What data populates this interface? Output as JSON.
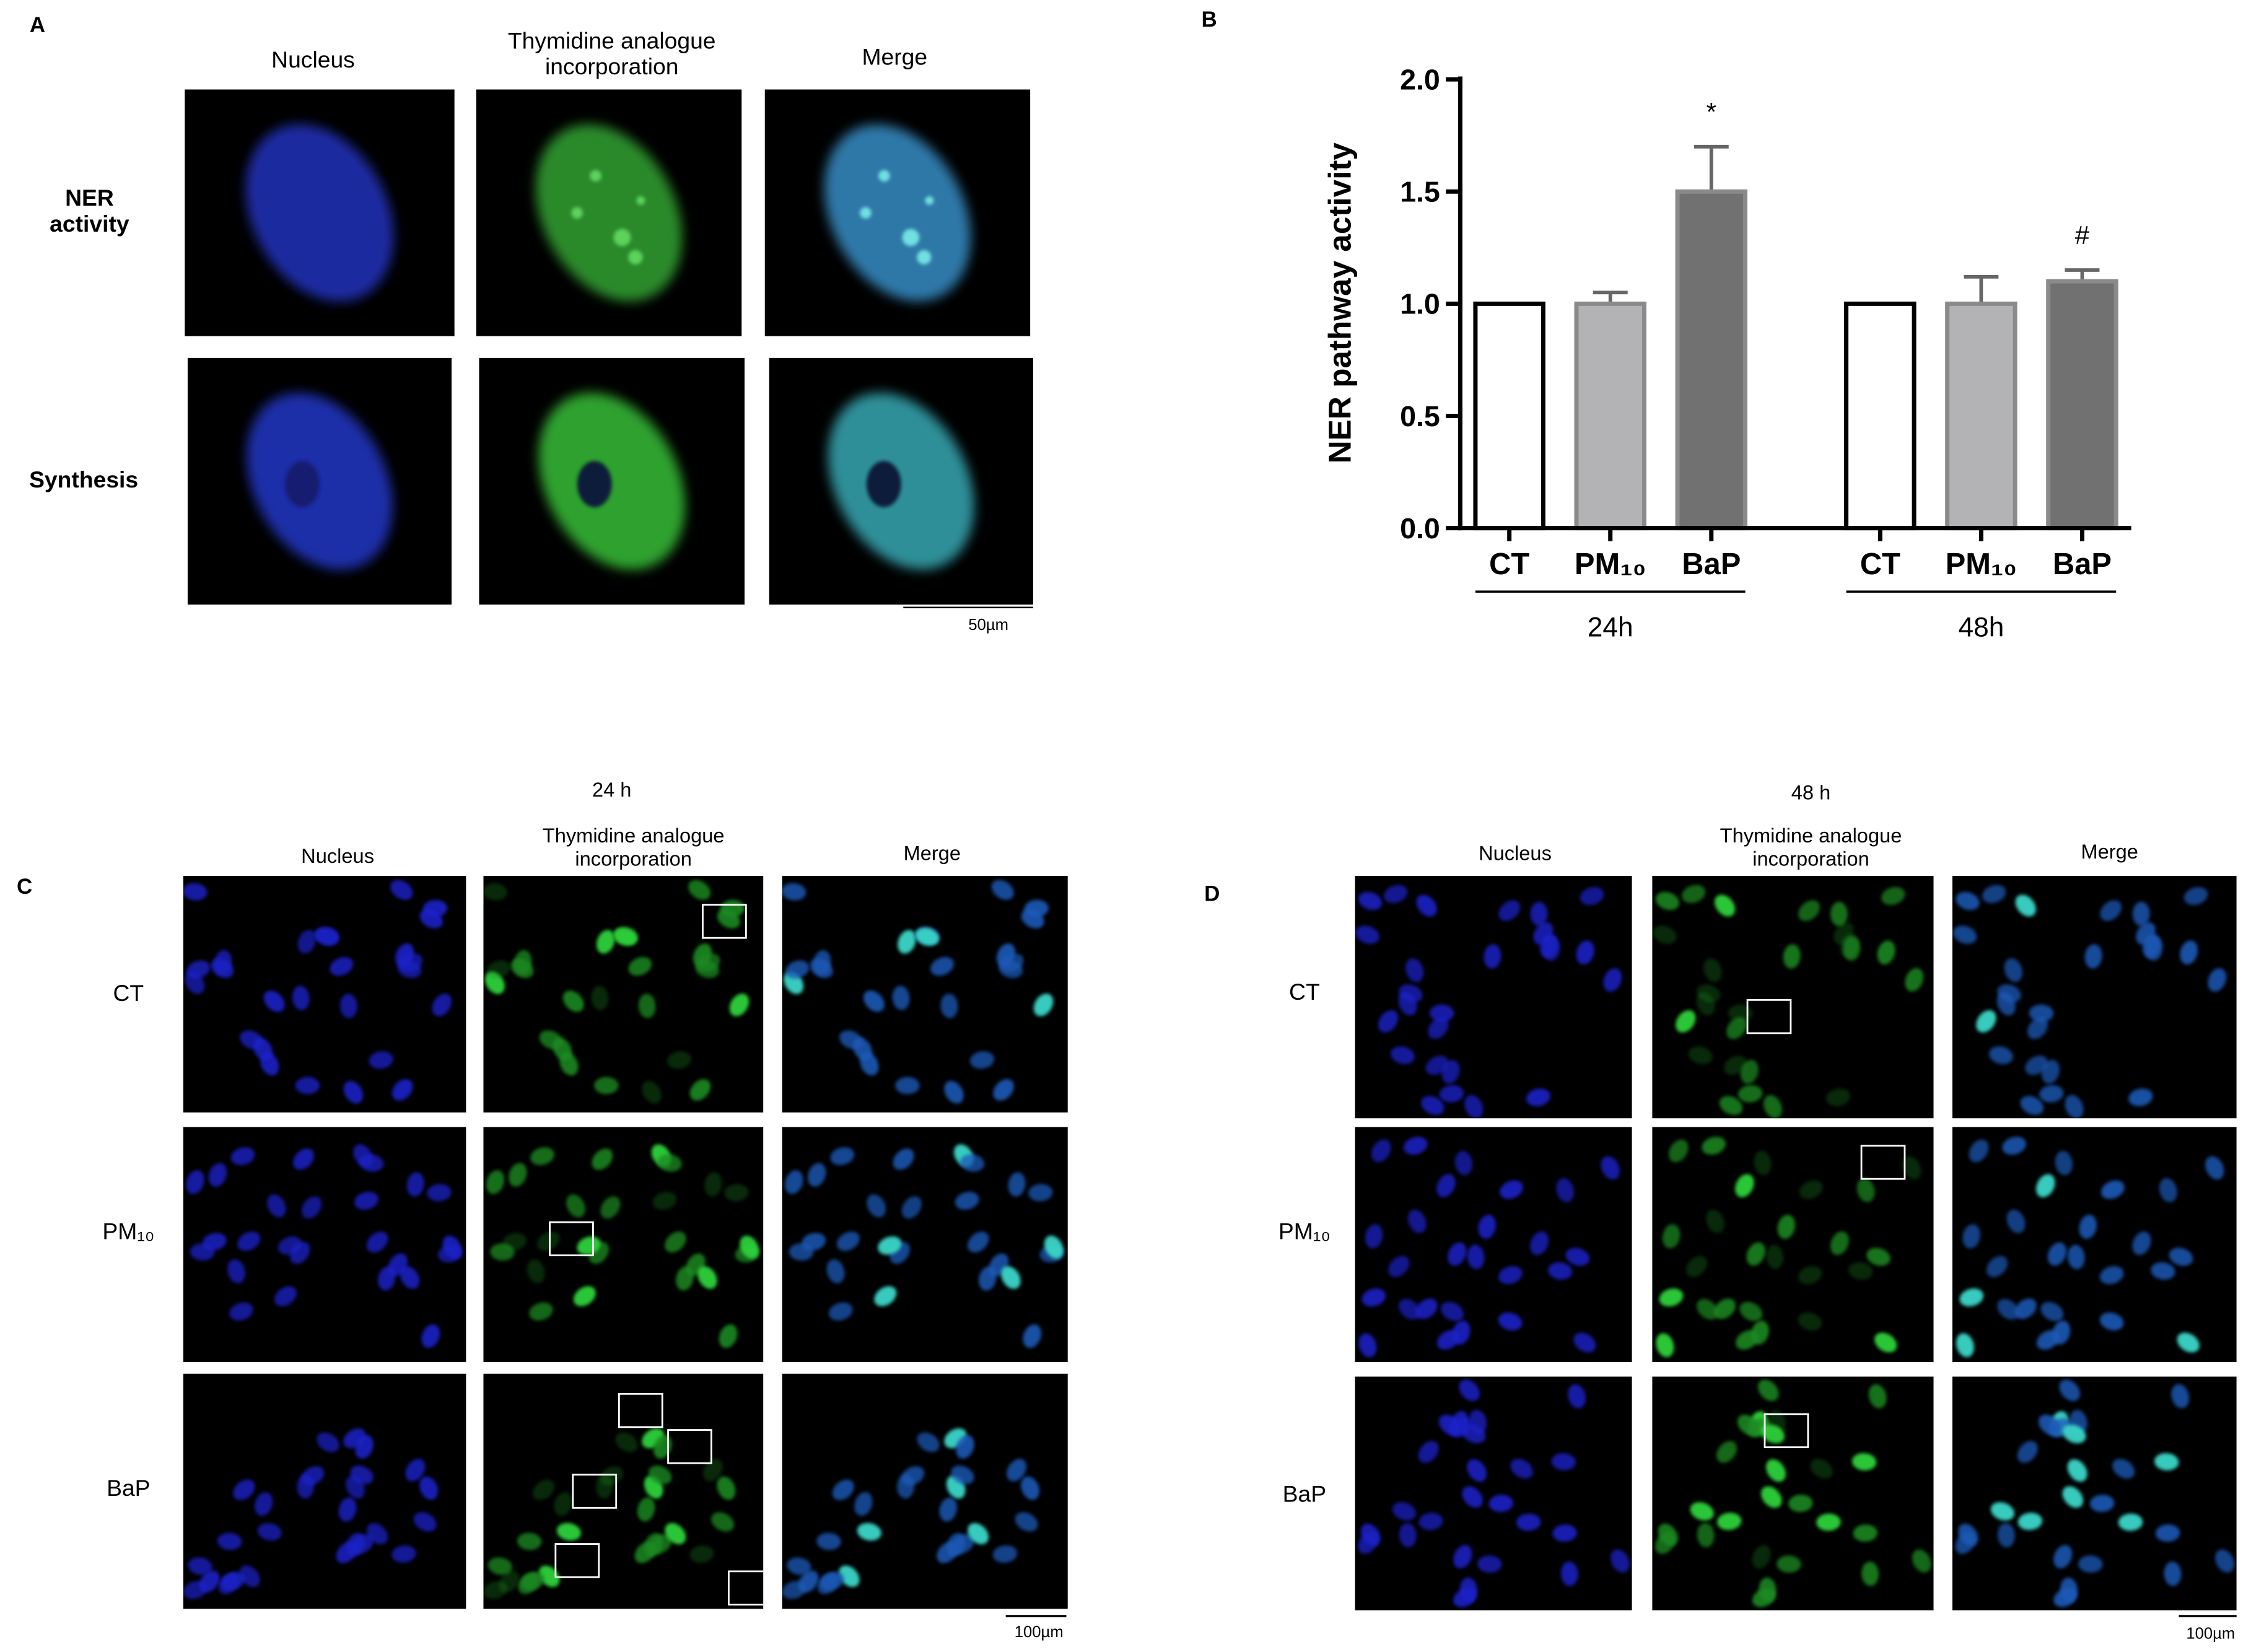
{
  "panel_a": {
    "label": "A",
    "columns": [
      "Nucleus",
      "Thymidine analogue incorporation",
      "Merge"
    ],
    "rows": [
      "NER activity",
      "Synthesis"
    ],
    "scale_bar": "50µm"
  },
  "chart_data": {
    "type": "bar",
    "panel_label": "B",
    "ylabel": "NER pathway activity",
    "categories": [
      "CT",
      "PM₁₀",
      "BaP",
      "CT",
      "PM₁₀",
      "BaP"
    ],
    "groups": [
      "24h",
      "48h"
    ],
    "values": [
      1.0,
      1.0,
      1.5,
      1.0,
      1.0,
      1.1
    ],
    "errors": [
      null,
      0.05,
      0.2,
      null,
      0.12,
      0.05
    ],
    "annotations": [
      null,
      null,
      "*",
      null,
      null,
      "#"
    ],
    "colors": [
      "#ffffff",
      "#b3b3b6",
      "#717171",
      "#ffffff",
      "#b3b3b6",
      "#717171"
    ],
    "ylim": [
      0,
      2
    ],
    "yticks": [
      {
        "value": 0,
        "label": "0.0"
      },
      {
        "value": 0.5,
        "label": "0.5"
      },
      {
        "value": 1,
        "label": "1.0"
      },
      {
        "value": 1.5,
        "label": "1.5"
      },
      {
        "value": 2,
        "label": "2.0"
      }
    ]
  },
  "panel_c": {
    "label": "C",
    "title": "24 h",
    "columns": [
      "Nucleus",
      "Thymidine analogue incorporation",
      "Merge"
    ],
    "rows": [
      "CT",
      "PM₁₀",
      "BaP"
    ],
    "scale_bar": "100µm"
  },
  "panel_d": {
    "label": "D",
    "title": "48 h",
    "columns": [
      "Nucleus",
      "Thymidine analogue incorporation",
      "Merge"
    ],
    "rows": [
      "CT",
      "PM₁₀",
      "BaP"
    ],
    "scale_bar": "100µm"
  }
}
